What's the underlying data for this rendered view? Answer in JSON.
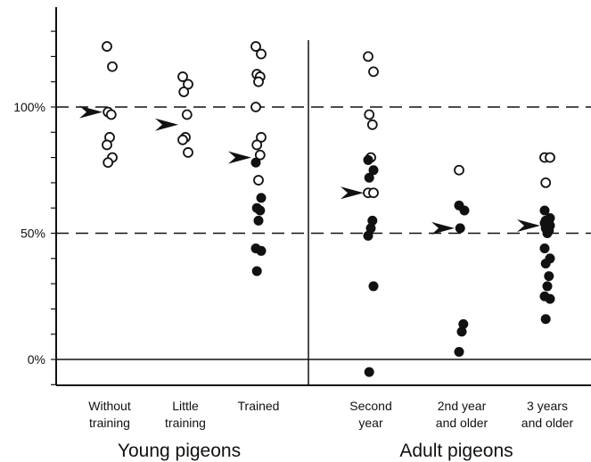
{
  "chart_data": {
    "type": "scatter",
    "title": "",
    "xlabel": "",
    "ylabel": "",
    "ylim": [
      -10,
      138
    ],
    "y_ticks": [
      {
        "value": 100,
        "label": "100%"
      },
      {
        "value": 50,
        "label": "50%"
      },
      {
        "value": 0,
        "label": "0%"
      }
    ],
    "reference_lines": [
      {
        "value": 100,
        "style": "dashed"
      },
      {
        "value": 50,
        "style": "dashed"
      },
      {
        "value": 0,
        "style": "solid"
      }
    ],
    "groups": [
      {
        "label": "Young pigeons",
        "categories": [
          0,
          1,
          2
        ]
      },
      {
        "label": "Adult pigeons",
        "categories": [
          3,
          4,
          5
        ]
      }
    ],
    "categories": [
      {
        "label_lines": [
          "Without",
          "training"
        ],
        "mean": 98,
        "open": [
          124,
          116,
          98,
          97,
          88,
          85,
          80,
          78
        ],
        "filled": []
      },
      {
        "label_lines": [
          "Little",
          "training"
        ],
        "mean": 93,
        "open": [
          112,
          109,
          106,
          97,
          88,
          87,
          82
        ],
        "filled": []
      },
      {
        "label_lines": [
          "Trained"
        ],
        "mean": 80,
        "open": [
          124,
          121,
          113,
          112,
          110,
          100,
          88,
          85,
          81,
          71
        ],
        "filled": [
          78,
          64,
          60,
          59,
          55,
          44,
          43,
          35
        ]
      },
      {
        "label_lines": [
          "Second",
          "year"
        ],
        "mean": 66,
        "open": [
          120,
          114,
          97,
          93,
          80,
          66,
          66
        ],
        "filled": [
          79,
          75,
          72,
          55,
          52,
          49,
          29,
          -5
        ]
      },
      {
        "label_lines": [
          "2nd year",
          "and older"
        ],
        "mean": 52,
        "open": [
          75
        ],
        "filled": [
          61,
          59,
          52,
          14,
          11,
          3
        ]
      },
      {
        "label_lines": [
          "3 years",
          "and older"
        ],
        "mean": 53,
        "open": [
          80,
          80,
          70
        ],
        "filled": [
          59,
          56,
          55,
          54,
          54,
          54,
          53,
          52,
          51,
          50,
          44,
          40,
          38,
          33,
          29,
          25,
          24,
          16
        ]
      }
    ]
  }
}
